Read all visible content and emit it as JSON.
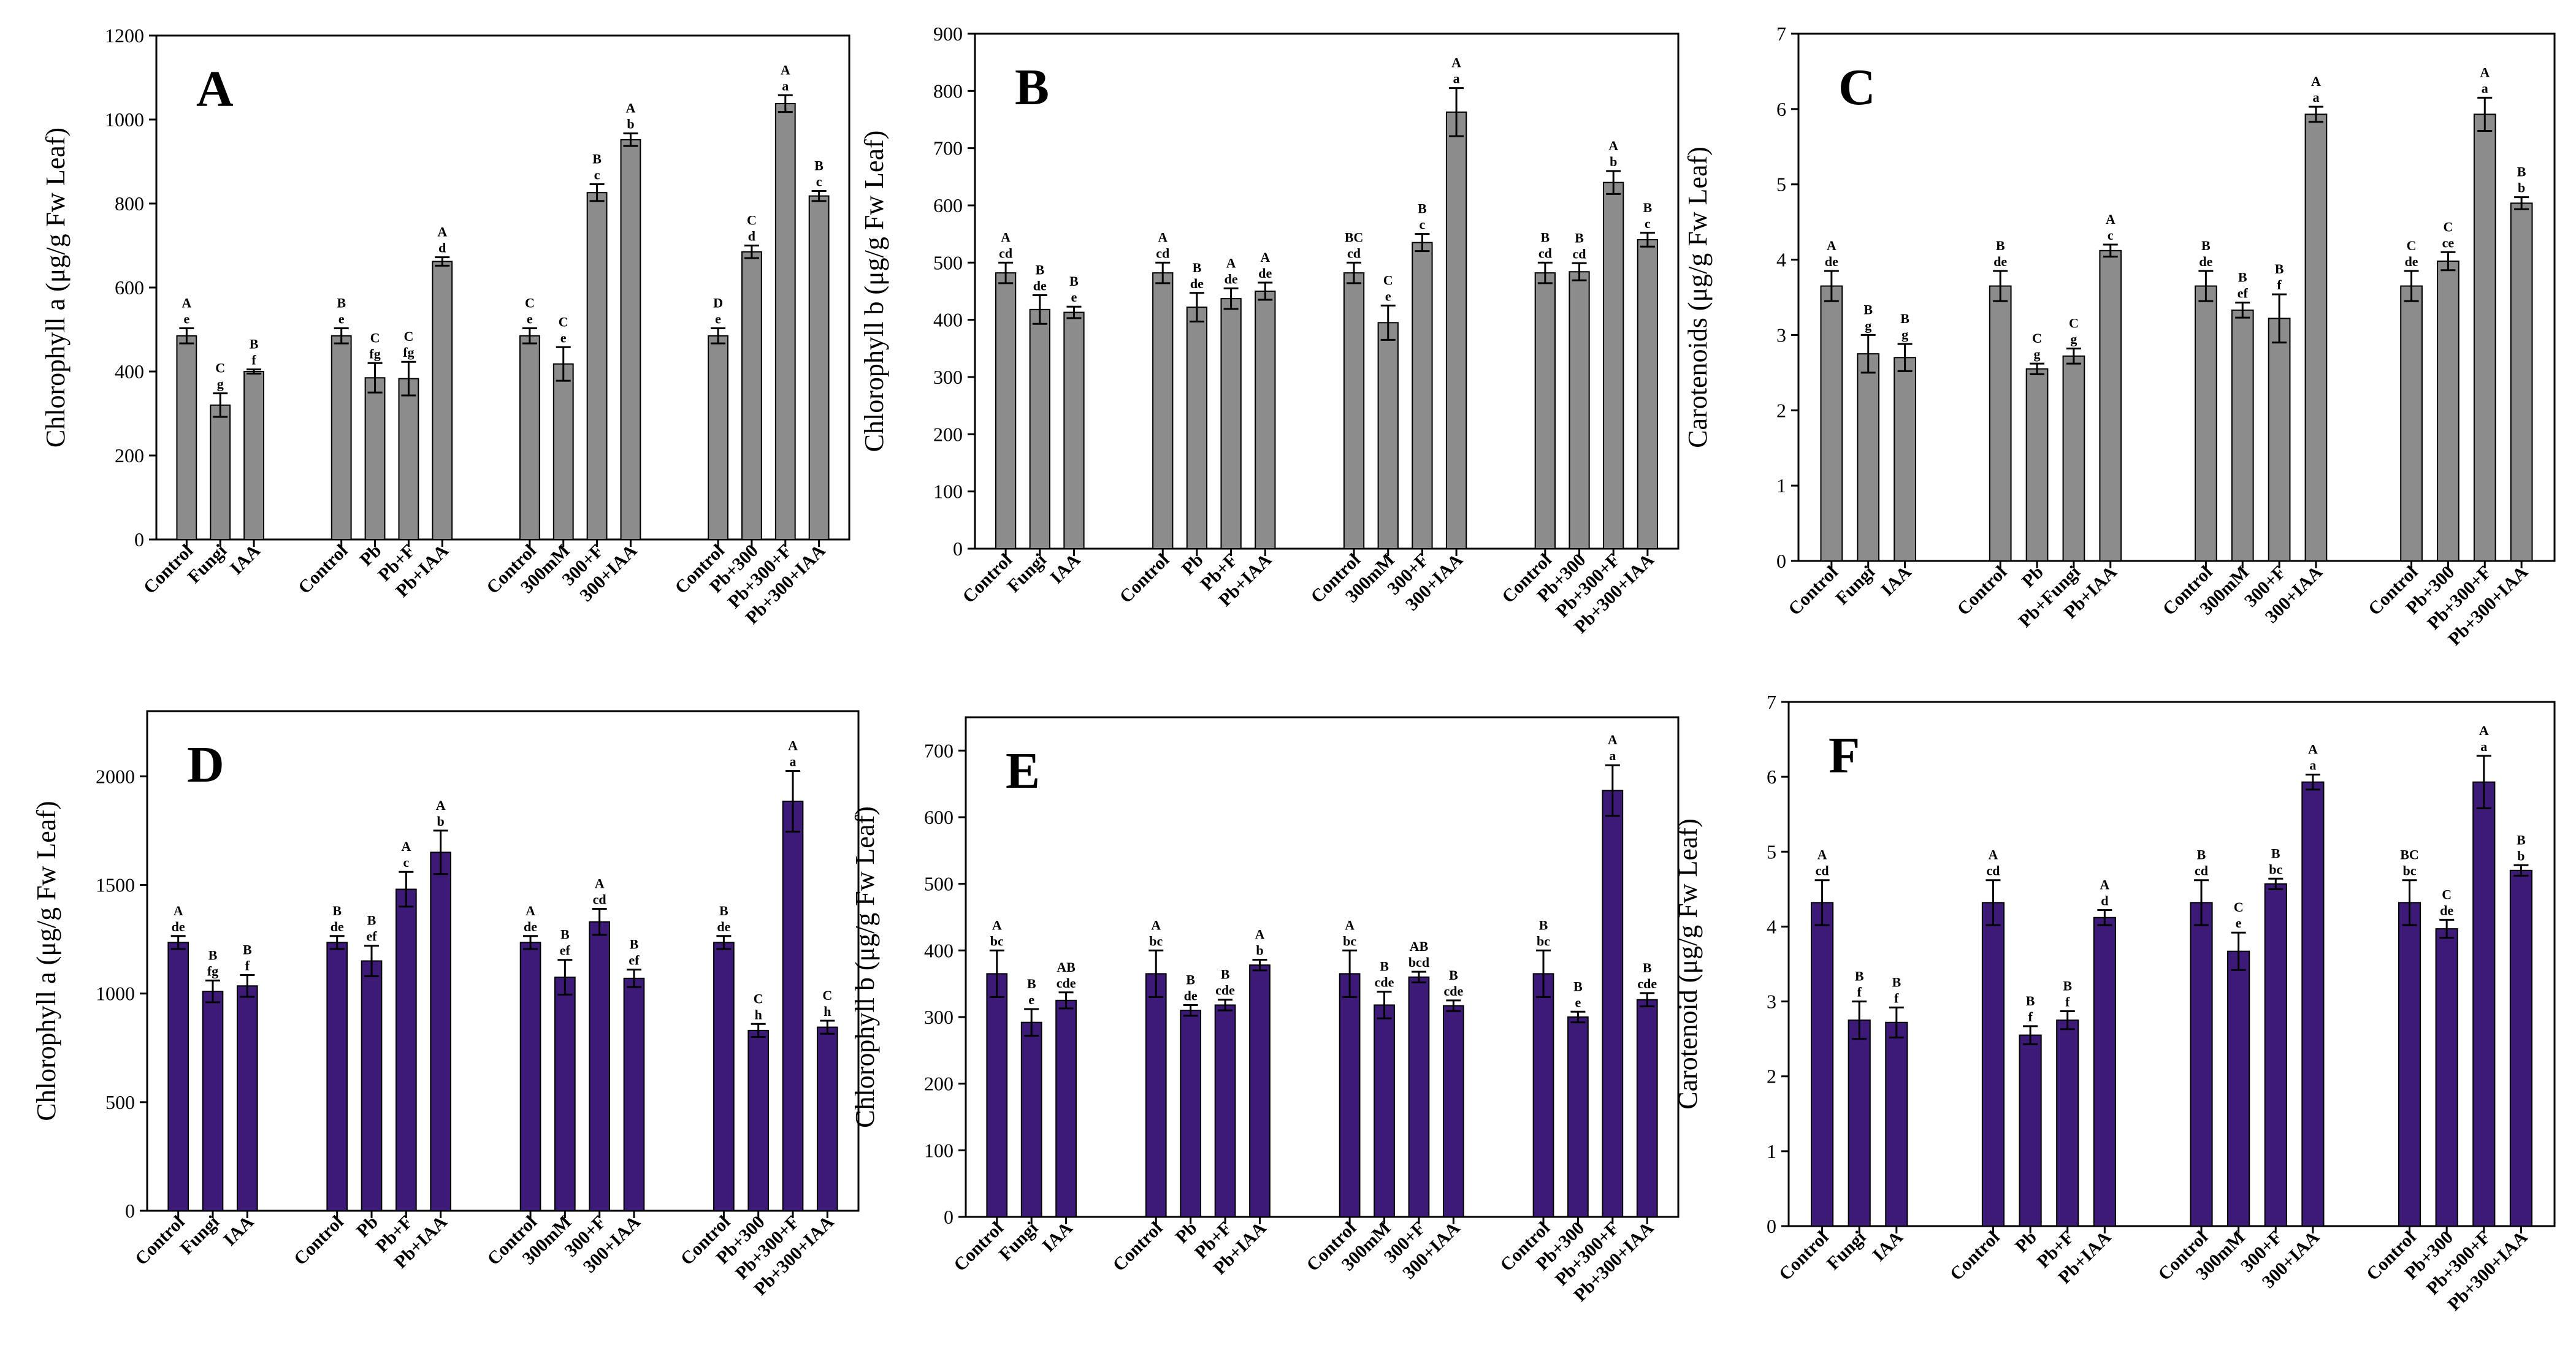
{
  "colors": {
    "gray": "#8c8c8c",
    "purple": "#3d1a78",
    "axis": "#000000"
  },
  "chart_data": [
    {
      "type": "bar",
      "panel": "A",
      "ylabel": "Chlorophyll a (μg/g Fw Leaf)",
      "ylim": [
        0,
        1200
      ],
      "yticks": [
        0,
        200,
        400,
        600,
        800,
        1000,
        1200
      ],
      "color": "gray",
      "groups": [
        {
          "categories": [
            "Control",
            "Fungi",
            "IAA"
          ],
          "values": [
            485,
            320,
            400
          ],
          "errors": [
            18,
            28,
            5
          ],
          "letters_upper": [
            "A",
            "C",
            "B"
          ],
          "letters_lower": [
            "e",
            "g",
            "f"
          ]
        },
        {
          "categories": [
            "Control",
            "Pb",
            "Pb+F",
            "Pb+IAA"
          ],
          "values": [
            485,
            385,
            383,
            662
          ],
          "errors": [
            18,
            35,
            40,
            10
          ],
          "letters_upper": [
            "B",
            "C",
            "C",
            "A"
          ],
          "letters_lower": [
            "e",
            "fg",
            "fg",
            "d"
          ]
        },
        {
          "categories": [
            "Control",
            "300mM",
            "300+F",
            "300+IAA"
          ],
          "values": [
            485,
            418,
            826,
            952
          ],
          "errors": [
            18,
            40,
            20,
            15
          ],
          "letters_upper": [
            "C",
            "C",
            "B",
            "A"
          ],
          "letters_lower": [
            "e",
            "e",
            "c",
            "b"
          ]
        },
        {
          "categories": [
            "Control",
            "Pb+300",
            "Pb+300+F",
            "Pb+300+IAA"
          ],
          "values": [
            485,
            685,
            1038,
            818
          ],
          "errors": [
            18,
            15,
            20,
            12
          ],
          "letters_upper": [
            "D",
            "C",
            "A",
            "B"
          ],
          "letters_lower": [
            "e",
            "d",
            "a",
            "c"
          ]
        }
      ]
    },
    {
      "type": "bar",
      "panel": "B",
      "ylabel": "Chlorophyll b (μg/g Fw Leaf)",
      "ylim": [
        0,
        900
      ],
      "yticks": [
        0,
        100,
        200,
        300,
        400,
        500,
        600,
        700,
        800,
        900
      ],
      "color": "gray",
      "groups": [
        {
          "categories": [
            "Control",
            "Fungi",
            "IAA"
          ],
          "values": [
            482,
            418,
            413
          ],
          "errors": [
            18,
            25,
            10
          ],
          "letters_upper": [
            "A",
            "B",
            "B"
          ],
          "letters_lower": [
            "cd",
            "de",
            "e"
          ]
        },
        {
          "categories": [
            "Control",
            "Pb",
            "Pb+F",
            "Pb+IAA"
          ],
          "values": [
            482,
            422,
            437,
            450
          ],
          "errors": [
            18,
            25,
            18,
            15
          ],
          "letters_upper": [
            "A",
            "B",
            "A",
            "A"
          ],
          "letters_lower": [
            "cd",
            "de",
            "de",
            "de"
          ]
        },
        {
          "categories": [
            "Control",
            "300mM",
            "300+F",
            "300+IAA"
          ],
          "values": [
            482,
            395,
            535,
            763
          ],
          "errors": [
            18,
            30,
            15,
            42
          ],
          "letters_upper": [
            "BC",
            "C",
            "B",
            "A"
          ],
          "letters_lower": [
            "cd",
            "e",
            "c",
            "a"
          ]
        },
        {
          "categories": [
            "Control",
            "Pb+300",
            "Pb+300+F",
            "Pb+300+IAA"
          ],
          "values": [
            482,
            484,
            640,
            540
          ],
          "errors": [
            18,
            15,
            20,
            12
          ],
          "letters_upper": [
            "B",
            "B",
            "A",
            "B"
          ],
          "letters_lower": [
            "cd",
            "cd",
            "b",
            "c"
          ]
        }
      ]
    },
    {
      "type": "bar",
      "panel": "C",
      "ylabel": "Carotenoids (μg/g Fw Leaf)",
      "ylim": [
        0,
        7
      ],
      "yticks": [
        0,
        1,
        2,
        3,
        4,
        5,
        6,
        7
      ],
      "color": "gray",
      "groups": [
        {
          "categories": [
            "Control",
            "Fungi",
            "IAA"
          ],
          "values": [
            3.65,
            2.75,
            2.7
          ],
          "errors": [
            0.2,
            0.25,
            0.18
          ],
          "letters_upper": [
            "A",
            "B",
            "B"
          ],
          "letters_lower": [
            "de",
            "g",
            "g"
          ]
        },
        {
          "categories": [
            "Control",
            "Pb",
            "Pb+Fungi",
            "Pb+IAA"
          ],
          "values": [
            3.65,
            2.55,
            2.72,
            4.12
          ],
          "errors": [
            0.2,
            0.07,
            0.1,
            0.08
          ],
          "letters_upper": [
            "B",
            "C",
            "C",
            "A"
          ],
          "letters_lower": [
            "de",
            "g",
            "g",
            "c"
          ]
        },
        {
          "categories": [
            "Control",
            "300mM",
            "300+F",
            "300+IAA"
          ],
          "values": [
            3.65,
            3.33,
            3.22,
            5.93
          ],
          "errors": [
            0.2,
            0.1,
            0.32,
            0.1
          ],
          "letters_upper": [
            "B",
            "B",
            "B",
            "A"
          ],
          "letters_lower": [
            "de",
            "ef",
            "f",
            "a"
          ]
        },
        {
          "categories": [
            "Control",
            "Pb+300",
            "Pb+300+F",
            "Pb+300+IAA"
          ],
          "values": [
            3.65,
            3.98,
            5.93,
            4.75
          ],
          "errors": [
            0.2,
            0.12,
            0.22,
            0.08
          ],
          "letters_upper": [
            "C",
            "C",
            "A",
            "B"
          ],
          "letters_lower": [
            "de",
            "ce",
            "a",
            "b"
          ]
        }
      ]
    },
    {
      "type": "bar",
      "panel": "D",
      "ylabel": "Chlorophyll a (μg/g Fw Leaf)",
      "ylim": [
        0,
        2300
      ],
      "yticks": [
        0,
        500,
        1000,
        1500,
        2000
      ],
      "color": "purple",
      "groups": [
        {
          "categories": [
            "Control",
            "Fungi",
            "IAA"
          ],
          "values": [
            1235,
            1010,
            1035
          ],
          "errors": [
            30,
            50,
            50
          ],
          "letters_upper": [
            "A",
            "B",
            "B"
          ],
          "letters_lower": [
            "de",
            "fg",
            "f"
          ]
        },
        {
          "categories": [
            "Control",
            "Pb",
            "Pb+F",
            "Pb+IAA"
          ],
          "values": [
            1235,
            1150,
            1480,
            1650
          ],
          "errors": [
            30,
            70,
            80,
            100
          ],
          "letters_upper": [
            "B",
            "B",
            "A",
            "A"
          ],
          "letters_lower": [
            "de",
            "ef",
            "c",
            "b"
          ]
        },
        {
          "categories": [
            "Control",
            "300mM",
            "300+F",
            "300+IAA"
          ],
          "values": [
            1235,
            1075,
            1330,
            1070
          ],
          "errors": [
            30,
            80,
            60,
            40
          ],
          "letters_upper": [
            "A",
            "B",
            "A",
            "B"
          ],
          "letters_lower": [
            "de",
            "ef",
            "cd",
            "ef"
          ]
        },
        {
          "categories": [
            "Control",
            "Pb+300",
            "Pb+300+F",
            "Pb+300+IAA"
          ],
          "values": [
            1235,
            830,
            1885,
            845
          ],
          "errors": [
            30,
            30,
            140,
            30
          ],
          "letters_upper": [
            "B",
            "C",
            "A",
            "C"
          ],
          "letters_lower": [
            "de",
            "h",
            "a",
            "h"
          ]
        }
      ]
    },
    {
      "type": "bar",
      "panel": "E",
      "ylabel": "Chlorophyll b (μg/g Fw Leaf)",
      "ylim": [
        0,
        750
      ],
      "yticks": [
        0,
        100,
        200,
        300,
        400,
        500,
        600,
        700
      ],
      "color": "purple",
      "groups": [
        {
          "categories": [
            "Control",
            "Fungi",
            "IAA"
          ],
          "values": [
            365,
            292,
            325
          ],
          "errors": [
            35,
            20,
            12
          ],
          "letters_upper": [
            "A",
            "B",
            "AB"
          ],
          "letters_lower": [
            "bc",
            "e",
            "cde"
          ]
        },
        {
          "categories": [
            "Control",
            "Pb",
            "Pb+F",
            "Pb+IAA"
          ],
          "values": [
            365,
            310,
            318,
            378
          ],
          "errors": [
            35,
            8,
            8,
            8
          ],
          "letters_upper": [
            "A",
            "B",
            "B",
            "A"
          ],
          "letters_lower": [
            "bc",
            "de",
            "cde",
            "b"
          ]
        },
        {
          "categories": [
            "Control",
            "300mM",
            "300+F",
            "300+IAA"
          ],
          "values": [
            365,
            318,
            360,
            317
          ],
          "errors": [
            35,
            20,
            8,
            8
          ],
          "letters_upper": [
            "A",
            "B",
            "AB",
            "B"
          ],
          "letters_lower": [
            "bc",
            "cde",
            "bcd",
            "cde"
          ]
        },
        {
          "categories": [
            "Control",
            "Pb+300",
            "Pb+300+F",
            "Pb+300+IAA"
          ],
          "values": [
            365,
            300,
            640,
            326
          ],
          "errors": [
            35,
            8,
            38,
            10
          ],
          "letters_upper": [
            "B",
            "B",
            "A",
            "B"
          ],
          "letters_lower": [
            "bc",
            "e",
            "a",
            "cde"
          ]
        }
      ]
    },
    {
      "type": "bar",
      "panel": "F",
      "ylabel": "Carotenoid (μg/g Fw Leaf)",
      "ylim": [
        0,
        7
      ],
      "yticks": [
        0,
        1,
        2,
        3,
        4,
        5,
        6,
        7
      ],
      "color": "purple",
      "groups": [
        {
          "categories": [
            "Control",
            "Fungi",
            "IAA"
          ],
          "values": [
            4.32,
            2.75,
            2.72
          ],
          "errors": [
            0.3,
            0.25,
            0.2
          ],
          "letters_upper": [
            "A",
            "B",
            "B"
          ],
          "letters_lower": [
            "cd",
            "f",
            "f"
          ]
        },
        {
          "categories": [
            "Control",
            "Pb",
            "Pb+F",
            "Pb+IAA"
          ],
          "values": [
            4.32,
            2.55,
            2.75,
            4.12
          ],
          "errors": [
            0.3,
            0.12,
            0.12,
            0.1
          ],
          "letters_upper": [
            "A",
            "B",
            "B",
            "A"
          ],
          "letters_lower": [
            "cd",
            "f",
            "f",
            "d"
          ]
        },
        {
          "categories": [
            "Control",
            "300mM",
            "300+F",
            "300+IAA"
          ],
          "values": [
            4.32,
            3.67,
            4.57,
            5.93
          ],
          "errors": [
            0.3,
            0.25,
            0.07,
            0.1
          ],
          "letters_upper": [
            "B",
            "C",
            "B",
            "A"
          ],
          "letters_lower": [
            "cd",
            "e",
            "bc",
            "a"
          ]
        },
        {
          "categories": [
            "Control",
            "Pb+300",
            "Pb+300+F",
            "Pb+300+IAA"
          ],
          "values": [
            4.32,
            3.97,
            5.93,
            4.75
          ],
          "errors": [
            0.3,
            0.12,
            0.35,
            0.07
          ],
          "letters_upper": [
            "BC",
            "C",
            "A",
            "B"
          ],
          "letters_lower": [
            "bc",
            "de",
            "a",
            "b"
          ]
        }
      ]
    }
  ]
}
